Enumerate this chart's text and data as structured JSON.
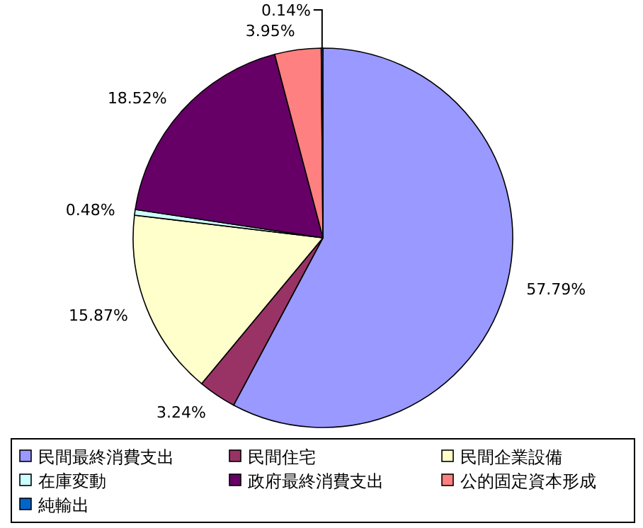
{
  "chart_data": {
    "type": "pie",
    "categories": [
      "民間最終消費支出",
      "民間住宅",
      "民間企業設備",
      "在庫変動",
      "政府最終消費支出",
      "公的固定資本形成",
      "純輸出"
    ],
    "values": [
      57.79,
      3.24,
      15.87,
      0.48,
      18.52,
      3.95,
      0.14
    ],
    "value_labels": [
      "57.79%",
      "3.24%",
      "15.87%",
      "0.48%",
      "18.52%",
      "3.95%",
      "0.14%"
    ],
    "colors": [
      "#9999ff",
      "#993366",
      "#ffffcc",
      "#ccffff",
      "#660066",
      "#ff8080",
      "#0066cc"
    ],
    "legend": "bottom"
  }
}
